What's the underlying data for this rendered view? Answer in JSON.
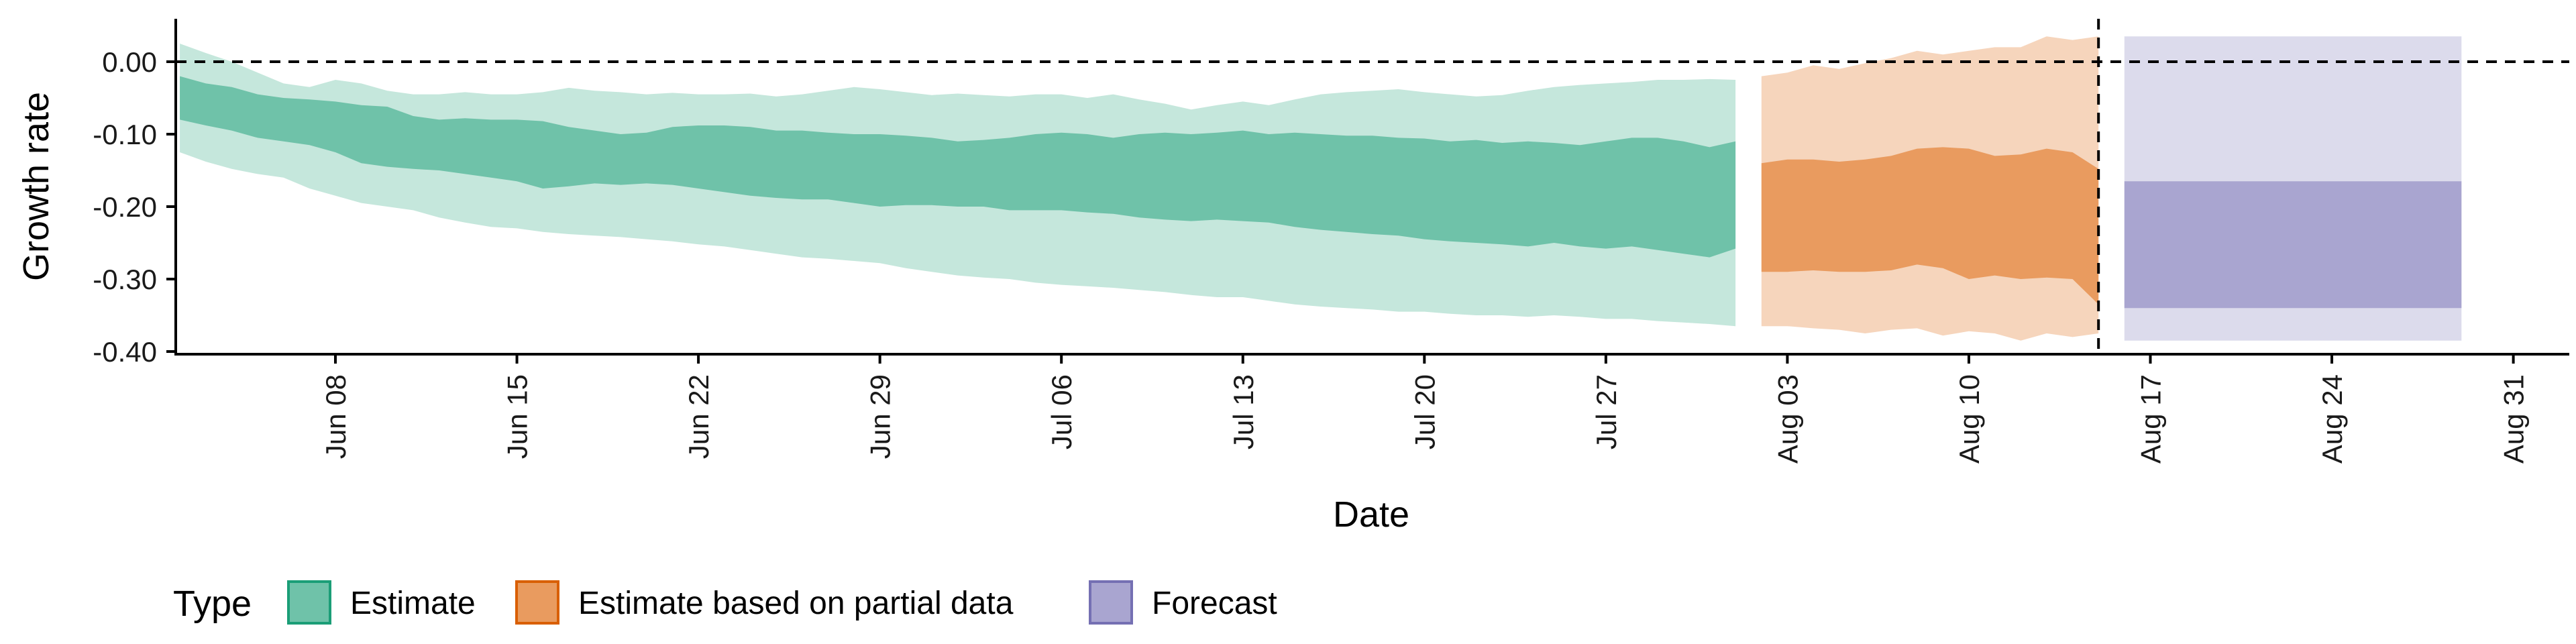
{
  "chart_data": {
    "type": "area",
    "xlabel": "Date",
    "ylabel": "Growth rate",
    "ylim": [
      -0.4,
      0.05
    ],
    "y_ticks": [
      0.0,
      -0.1,
      -0.2,
      -0.3,
      -0.4
    ],
    "y_tick_labels": [
      "0.00",
      "-0.10",
      "-0.20",
      "-0.30",
      "-0.40"
    ],
    "x_tick_labels": [
      "Jun 08",
      "Jun 15",
      "Jun 22",
      "Jun 29",
      "Jul 06",
      "Jul 13",
      "Jul 20",
      "Jul 27",
      "Aug 03",
      "Aug 10",
      "Aug 17",
      "Aug 24",
      "Aug 31"
    ],
    "x_tick_dates": [
      "2020-06-08",
      "2020-06-15",
      "2020-06-22",
      "2020-06-29",
      "2020-07-06",
      "2020-07-13",
      "2020-07-20",
      "2020-07-27",
      "2020-08-03",
      "2020-08-10",
      "2020-08-17",
      "2020-08-24",
      "2020-08-31"
    ],
    "reference_lines": [
      {
        "axis": "y",
        "value": 0.0,
        "style": "dashed"
      },
      {
        "axis": "x",
        "value": "2020-08-15",
        "style": "dashed"
      }
    ],
    "legend": {
      "title": "Type",
      "position": "bottom",
      "items": [
        {
          "label": "Estimate",
          "fill": "#6fc2a9",
          "border": "#1b9e77"
        },
        {
          "label": "Estimate based on partial data",
          "fill": "#e99b5f",
          "border": "#d95f02"
        },
        {
          "label": "Forecast",
          "fill": "#a9a5d0",
          "border": "#7570b3"
        }
      ]
    },
    "series": [
      {
        "name": "Estimate",
        "color_inner": "#6fc2a9",
        "color_outer": "#c5e7dc",
        "x": [
          "2020-06-02",
          "2020-06-03",
          "2020-06-04",
          "2020-06-05",
          "2020-06-06",
          "2020-06-07",
          "2020-06-08",
          "2020-06-09",
          "2020-06-10",
          "2020-06-11",
          "2020-06-12",
          "2020-06-13",
          "2020-06-14",
          "2020-06-15",
          "2020-06-16",
          "2020-06-17",
          "2020-06-18",
          "2020-06-19",
          "2020-06-20",
          "2020-06-21",
          "2020-06-22",
          "2020-06-23",
          "2020-06-24",
          "2020-06-25",
          "2020-06-26",
          "2020-06-27",
          "2020-06-28",
          "2020-06-29",
          "2020-06-30",
          "2020-07-01",
          "2020-07-02",
          "2020-07-03",
          "2020-07-04",
          "2020-07-05",
          "2020-07-06",
          "2020-07-07",
          "2020-07-08",
          "2020-07-09",
          "2020-07-10",
          "2020-07-11",
          "2020-07-12",
          "2020-07-13",
          "2020-07-14",
          "2020-07-15",
          "2020-07-16",
          "2020-07-17",
          "2020-07-18",
          "2020-07-19",
          "2020-07-20",
          "2020-07-21",
          "2020-07-22",
          "2020-07-23",
          "2020-07-24",
          "2020-07-25",
          "2020-07-26",
          "2020-07-27",
          "2020-07-28",
          "2020-07-29",
          "2020-07-30",
          "2020-07-31",
          "2020-08-01"
        ],
        "upper_90": [
          0.025,
          0.012,
          0.0,
          -0.015,
          -0.03,
          -0.035,
          -0.025,
          -0.03,
          -0.04,
          -0.045,
          -0.045,
          -0.042,
          -0.045,
          -0.045,
          -0.042,
          -0.036,
          -0.04,
          -0.042,
          -0.045,
          -0.043,
          -0.045,
          -0.045,
          -0.044,
          -0.048,
          -0.045,
          -0.04,
          -0.035,
          -0.038,
          -0.042,
          -0.046,
          -0.044,
          -0.046,
          -0.048,
          -0.045,
          -0.045,
          -0.05,
          -0.045,
          -0.052,
          -0.058,
          -0.066,
          -0.06,
          -0.055,
          -0.06,
          -0.052,
          -0.045,
          -0.042,
          -0.04,
          -0.038,
          -0.042,
          -0.045,
          -0.048,
          -0.046,
          -0.04,
          -0.035,
          -0.032,
          -0.03,
          -0.028,
          -0.025,
          -0.025,
          -0.024,
          -0.025
        ],
        "upper_50": [
          -0.02,
          -0.03,
          -0.035,
          -0.045,
          -0.05,
          -0.052,
          -0.055,
          -0.06,
          -0.062,
          -0.075,
          -0.08,
          -0.078,
          -0.08,
          -0.08,
          -0.082,
          -0.09,
          -0.095,
          -0.1,
          -0.098,
          -0.09,
          -0.088,
          -0.088,
          -0.09,
          -0.095,
          -0.095,
          -0.098,
          -0.1,
          -0.1,
          -0.102,
          -0.105,
          -0.11,
          -0.108,
          -0.105,
          -0.1,
          -0.098,
          -0.1,
          -0.105,
          -0.1,
          -0.098,
          -0.1,
          -0.098,
          -0.095,
          -0.1,
          -0.098,
          -0.1,
          -0.102,
          -0.102,
          -0.105,
          -0.106,
          -0.11,
          -0.108,
          -0.112,
          -0.11,
          -0.112,
          -0.115,
          -0.11,
          -0.105,
          -0.105,
          -0.11,
          -0.118,
          -0.11
        ],
        "lower_50": [
          -0.08,
          -0.088,
          -0.095,
          -0.105,
          -0.11,
          -0.115,
          -0.125,
          -0.14,
          -0.145,
          -0.148,
          -0.15,
          -0.155,
          -0.16,
          -0.165,
          -0.175,
          -0.172,
          -0.168,
          -0.17,
          -0.168,
          -0.17,
          -0.175,
          -0.18,
          -0.185,
          -0.188,
          -0.19,
          -0.19,
          -0.195,
          -0.2,
          -0.198,
          -0.198,
          -0.2,
          -0.2,
          -0.205,
          -0.205,
          -0.205,
          -0.208,
          -0.21,
          -0.215,
          -0.218,
          -0.22,
          -0.218,
          -0.22,
          -0.222,
          -0.228,
          -0.232,
          -0.235,
          -0.238,
          -0.24,
          -0.245,
          -0.248,
          -0.25,
          -0.252,
          -0.255,
          -0.25,
          -0.255,
          -0.258,
          -0.255,
          -0.26,
          -0.265,
          -0.27,
          -0.258
        ],
        "lower_90": [
          -0.125,
          -0.138,
          -0.148,
          -0.155,
          -0.16,
          -0.175,
          -0.185,
          -0.195,
          -0.2,
          -0.205,
          -0.215,
          -0.222,
          -0.228,
          -0.23,
          -0.235,
          -0.238,
          -0.24,
          -0.242,
          -0.245,
          -0.248,
          -0.252,
          -0.255,
          -0.26,
          -0.265,
          -0.27,
          -0.272,
          -0.275,
          -0.278,
          -0.285,
          -0.29,
          -0.295,
          -0.298,
          -0.3,
          -0.305,
          -0.308,
          -0.31,
          -0.312,
          -0.315,
          -0.318,
          -0.322,
          -0.325,
          -0.325,
          -0.33,
          -0.335,
          -0.338,
          -0.34,
          -0.342,
          -0.345,
          -0.345,
          -0.348,
          -0.35,
          -0.35,
          -0.352,
          -0.35,
          -0.352,
          -0.355,
          -0.355,
          -0.358,
          -0.36,
          -0.362,
          -0.365
        ]
      },
      {
        "name": "Estimate based on partial data",
        "color_inner": "#e99b5f",
        "color_outer": "#f6d5bc",
        "x": [
          "2020-08-02",
          "2020-08-03",
          "2020-08-04",
          "2020-08-05",
          "2020-08-06",
          "2020-08-07",
          "2020-08-08",
          "2020-08-09",
          "2020-08-10",
          "2020-08-11",
          "2020-08-12",
          "2020-08-13",
          "2020-08-14",
          "2020-08-15"
        ],
        "upper_90": [
          -0.02,
          -0.015,
          -0.005,
          -0.01,
          -0.002,
          0.005,
          0.015,
          0.01,
          0.015,
          0.02,
          0.02,
          0.035,
          0.03,
          0.035
        ],
        "upper_50": [
          -0.14,
          -0.135,
          -0.135,
          -0.138,
          -0.135,
          -0.13,
          -0.12,
          -0.118,
          -0.12,
          -0.13,
          -0.128,
          -0.12,
          -0.125,
          -0.148
        ],
        "lower_50": [
          -0.29,
          -0.29,
          -0.288,
          -0.29,
          -0.29,
          -0.288,
          -0.28,
          -0.285,
          -0.3,
          -0.295,
          -0.3,
          -0.298,
          -0.3,
          -0.335
        ],
        "lower_90": [
          -0.365,
          -0.365,
          -0.368,
          -0.37,
          -0.375,
          -0.37,
          -0.368,
          -0.378,
          -0.372,
          -0.375,
          -0.385,
          -0.375,
          -0.38,
          -0.375
        ]
      },
      {
        "name": "Forecast",
        "color_inner": "#a9a5d0",
        "color_outer": "#dcdbec",
        "x": [
          "2020-08-16",
          "2020-08-29"
        ],
        "upper_90": [
          0.035,
          0.035
        ],
        "upper_50": [
          -0.165,
          -0.165
        ],
        "lower_50": [
          -0.34,
          -0.34
        ],
        "lower_90": [
          -0.385,
          -0.385
        ]
      }
    ]
  }
}
